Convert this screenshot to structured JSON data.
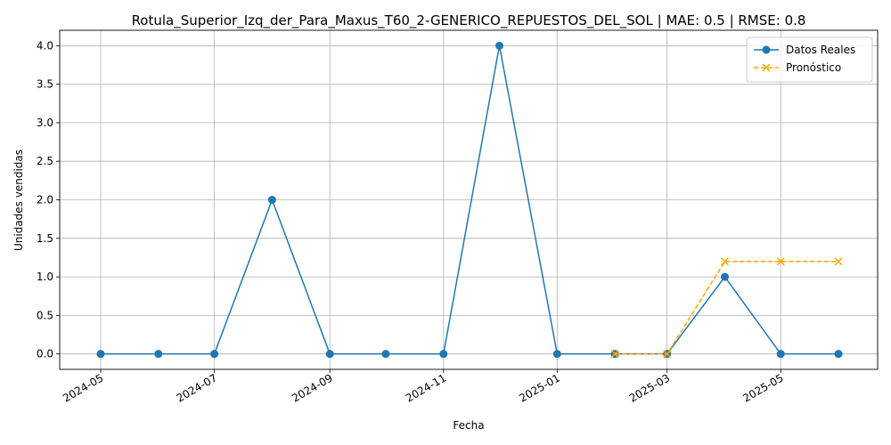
{
  "chart_data": {
    "type": "line",
    "title": "Rotula_Superior_Izq_der_Para_Maxus_T60_2-GENERICO_REPUESTOS_DEL_SOL | MAE: 0.5 | RMSE: 0.8",
    "xlabel": "Fecha",
    "ylabel": "Unidades vendidas",
    "xlim": [
      "2024-04-09",
      "2025-06-22"
    ],
    "ylim": [
      -0.2,
      4.2
    ],
    "x_ticks": [
      "2024-05-01",
      "2024-07-01",
      "2024-09-01",
      "2024-11-01",
      "2025-01-01",
      "2025-03-01",
      "2025-05-01"
    ],
    "x_tick_labels": [
      "2024-05",
      "2024-07",
      "2024-09",
      "2024-11",
      "2025-01",
      "2025-03",
      "2025-05"
    ],
    "y_ticks": [
      0.0,
      0.5,
      1.0,
      1.5,
      2.0,
      2.5,
      3.0,
      3.5,
      4.0
    ],
    "y_tick_labels": [
      "0.0",
      "0.5",
      "1.0",
      "1.5",
      "2.0",
      "2.5",
      "3.0",
      "3.5",
      "4.0"
    ],
    "grid": true,
    "legend_position": "top-right",
    "series": [
      {
        "name": "Datos Reales",
        "color": "#1f77b4",
        "marker": "circle",
        "linestyle": "solid",
        "x": [
          "2024-05-01",
          "2024-06-01",
          "2024-07-01",
          "2024-08-01",
          "2024-09-01",
          "2024-10-01",
          "2024-11-01",
          "2024-12-01",
          "2025-01-01",
          "2025-02-01",
          "2025-03-01",
          "2025-04-01",
          "2025-05-01",
          "2025-06-01"
        ],
        "values": [
          0,
          0,
          0,
          2,
          0,
          0,
          0,
          4,
          0,
          0,
          0,
          1,
          0,
          0
        ]
      },
      {
        "name": "Pronóstico",
        "color": "#ffa500",
        "marker": "x",
        "linestyle": "dashed",
        "x": [
          "2025-02-01",
          "2025-03-01",
          "2025-04-01",
          "2025-05-01",
          "2025-06-01"
        ],
        "values": [
          0,
          0,
          1.2,
          1.2,
          1.2
        ]
      }
    ]
  }
}
